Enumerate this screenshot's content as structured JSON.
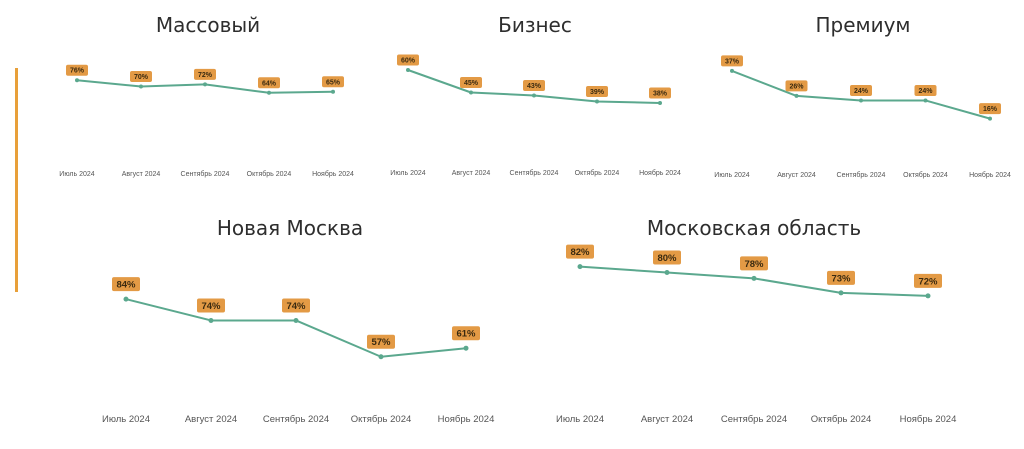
{
  "colors": {
    "line": "#5ba88e",
    "label_bg": "#e39a45",
    "accent": "#e8a03a"
  },
  "chart_data": [
    {
      "type": "line",
      "title": "Массовый",
      "categories": [
        "Июль 2024",
        "Август 2024",
        "Сентябрь 2024",
        "Октябрь 2024",
        "Ноябрь 2024"
      ],
      "values": [
        76,
        70,
        72,
        64,
        65
      ],
      "value_labels": [
        "76%",
        "70%",
        "72%",
        "64%",
        "65%"
      ],
      "grid": false
    },
    {
      "type": "line",
      "title": "Бизнес",
      "categories": [
        "Июль 2024",
        "Август 2024",
        "Сентябрь 2024",
        "Октябрь 2024",
        "Ноябрь 2024"
      ],
      "values": [
        60,
        45,
        43,
        39,
        38
      ],
      "value_labels": [
        "60%",
        "45%",
        "43%",
        "39%",
        "38%"
      ],
      "grid": false
    },
    {
      "type": "line",
      "title": "Премиум",
      "categories": [
        "Июль 2024",
        "Август 2024",
        "Сентябрь 2024",
        "Октябрь 2024",
        "Ноябрь 2024"
      ],
      "values": [
        37,
        26,
        24,
        24,
        16
      ],
      "value_labels": [
        "37%",
        "26%",
        "24%",
        "24%",
        "16%"
      ],
      "grid": false
    },
    {
      "type": "line",
      "title": "Новая Москва",
      "categories": [
        "Июль 2024",
        "Август 2024",
        "Сентябрь 2024",
        "Октябрь 2024",
        "Ноябрь 2024"
      ],
      "values": [
        84,
        74,
        74,
        57,
        61
      ],
      "value_labels": [
        "84%",
        "74%",
        "74%",
        "57%",
        "61%"
      ],
      "grid": false
    },
    {
      "type": "line",
      "title": "Московская область",
      "categories": [
        "Июль 2024",
        "Август 2024",
        "Сентябрь 2024",
        "Октябрь 2024",
        "Ноябрь 2024"
      ],
      "values": [
        82,
        80,
        78,
        73,
        72
      ],
      "value_labels": [
        "82%",
        "80%",
        "78%",
        "73%",
        "72%"
      ],
      "grid": false
    }
  ]
}
